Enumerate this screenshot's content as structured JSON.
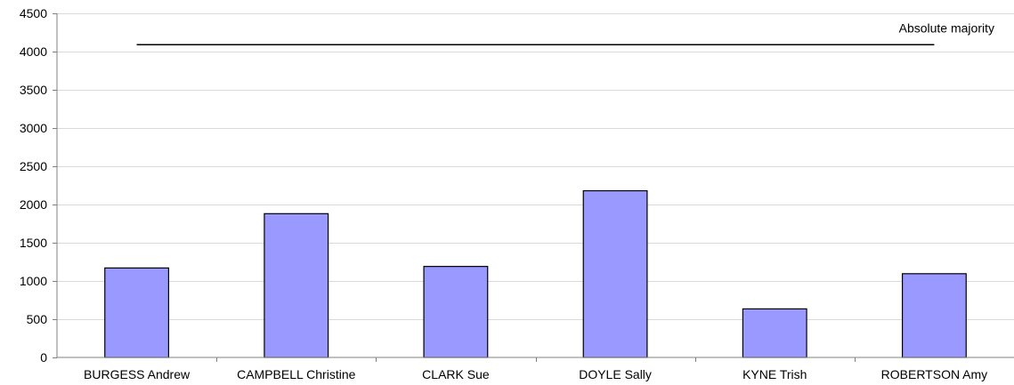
{
  "chart_data": {
    "type": "bar",
    "categories": [
      "BURGESS Andrew",
      "CAMPBELL Christine",
      "CLARK Sue",
      "DOYLE Sally",
      "KYNE Trish",
      "ROBERTSON Amy"
    ],
    "values": [
      1170,
      1880,
      1190,
      2180,
      635,
      1095
    ],
    "ylim": [
      0,
      4500
    ],
    "yticks": [
      "0",
      "500",
      "1000",
      "1500",
      "2000",
      "2500",
      "3000",
      "3500",
      "4000",
      "4500"
    ],
    "grid": true,
    "bar_color": "#9999ff",
    "reference_line": {
      "label": "Absolute majority",
      "value": 4090
    }
  }
}
